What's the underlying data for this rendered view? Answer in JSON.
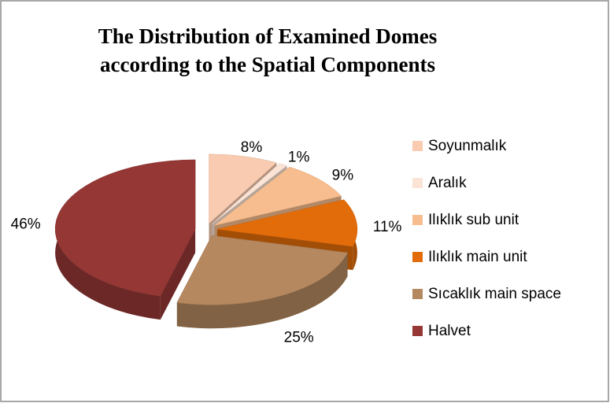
{
  "chart_data": {
    "type": "pie",
    "title": "The Distribution of Examined Domes according to the Spatial Components",
    "categories": [
      "Soyunmalık",
      "Aralık",
      "Ilıklık sub unit",
      "Ilıklık main unit",
      "Sıcaklık main space",
      "Halvet"
    ],
    "values": [
      8,
      1,
      9,
      11,
      25,
      46
    ],
    "value_labels": [
      "8%",
      "1%",
      "9%",
      "11%",
      "25%",
      "46%"
    ],
    "colors": [
      "#f9cbb0",
      "#fbe4d5",
      "#f7bd8e",
      "#e36c0a",
      "#b5885f",
      "#953735"
    ],
    "legend": "right"
  }
}
